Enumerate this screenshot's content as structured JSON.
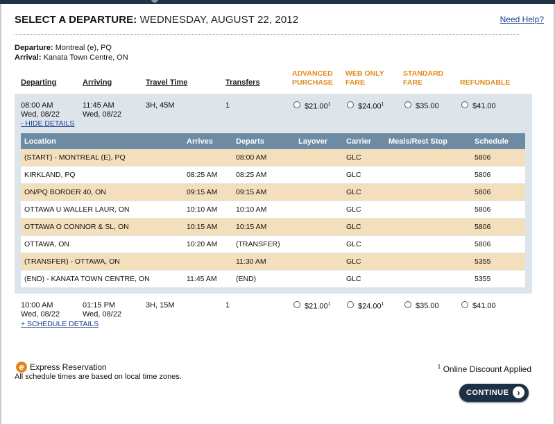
{
  "header": {
    "title_prefix": "SELECT A DEPARTURE:",
    "title_date": "WEDNESDAY, AUGUST 22, 2012",
    "help_link": "Need Help?"
  },
  "route": {
    "departure_label": "Departure:",
    "departure_value": "Montreal (e), PQ",
    "arrival_label": "Arrival:",
    "arrival_value": "Kanata Town Centre, ON"
  },
  "columns": {
    "departing": "Departing",
    "arriving": "Arriving",
    "travel_time": "Travel Time",
    "transfers": "Transfers",
    "advanced_1": "ADVANCED",
    "advanced_2": "PURCHASE",
    "web_1": "WEB ONLY",
    "web_2": "FARE",
    "standard_1": "STANDARD",
    "standard_2": "FARE",
    "refundable": "REFUNDABLE"
  },
  "trips": [
    {
      "depart_time": "08:00 AM",
      "depart_date": "Wed, 08/22",
      "arrive_time": "11:45 AM",
      "arrive_date": "Wed, 08/22",
      "travel_time": "3H, 45M",
      "transfers": "1",
      "toggle": "- HIDE DETAILS",
      "fares": [
        "$21.00",
        "$24.00",
        "$35.00",
        "$41.00"
      ],
      "fare_marks": [
        "1",
        "1",
        "",
        ""
      ]
    },
    {
      "depart_time": "10:00 AM",
      "depart_date": "Wed, 08/22",
      "arrive_time": "01:15 PM",
      "arrive_date": "Wed, 08/22",
      "travel_time": "3H, 15M",
      "transfers": "1",
      "toggle": "+ SCHEDULE DETAILS",
      "fares": [
        "$21.00",
        "$24.00",
        "$35.00",
        "$41.00"
      ],
      "fare_marks": [
        "1",
        "1",
        "",
        ""
      ]
    }
  ],
  "details": {
    "headers": {
      "location": "Location",
      "arrives": "Arrives",
      "departs": "Departs",
      "layover": "Layover",
      "carrier": "Carrier",
      "meals": "Meals/Rest Stop",
      "schedule": "Schedule"
    },
    "rows": [
      {
        "location": "(START) - MONTREAL (E), PQ",
        "arrives": "",
        "departs": "08:00 AM",
        "layover": "",
        "carrier": "GLC",
        "meals": "",
        "schedule": "5806"
      },
      {
        "location": "KIRKLAND, PQ",
        "arrives": "08:25 AM",
        "departs": "08:25 AM",
        "layover": "",
        "carrier": "GLC",
        "meals": "",
        "schedule": "5806"
      },
      {
        "location": "ON/PQ BORDER 40, ON",
        "arrives": "09:15 AM",
        "departs": "09:15 AM",
        "layover": "",
        "carrier": "GLC",
        "meals": "",
        "schedule": "5806"
      },
      {
        "location": "OTTAWA U WALLER LAUR, ON",
        "arrives": "10:10 AM",
        "departs": "10:10 AM",
        "layover": "",
        "carrier": "GLC",
        "meals": "",
        "schedule": "5806"
      },
      {
        "location": "OTTAWA O CONNOR & SL, ON",
        "arrives": "10:15 AM",
        "departs": "10:15 AM",
        "layover": "",
        "carrier": "GLC",
        "meals": "",
        "schedule": "5806"
      },
      {
        "location": "OTTAWA, ON",
        "arrives": "10:20 AM",
        "departs": "(TRANSFER)",
        "layover": "",
        "carrier": "GLC",
        "meals": "",
        "schedule": "5806"
      },
      {
        "location": "(TRANSFER) - OTTAWA, ON",
        "arrives": "",
        "departs": "11:30 AM",
        "layover": "",
        "carrier": "GLC",
        "meals": "",
        "schedule": "5355"
      },
      {
        "location": "(END) - KANATA TOWN CENTRE, ON",
        "arrives": "11:45 AM",
        "departs": "(END)",
        "layover": "",
        "carrier": "GLC",
        "meals": "",
        "schedule": "5355"
      }
    ]
  },
  "footer": {
    "express_icon": "e",
    "express_label": "Express Reservation",
    "timezone_note": "All schedule times are based on local time zones.",
    "discount_mark": "1",
    "discount_note": "Online Discount Applied",
    "continue_label": "CONTINUE",
    "continue_icon": "arrow-right-icon",
    "colors": {
      "accent_orange": "#e08a1c",
      "table_header": "#6d8ba3",
      "row_alt": "#f4dfbd",
      "panel": "#dde4ea",
      "button": "#1c3144"
    }
  }
}
